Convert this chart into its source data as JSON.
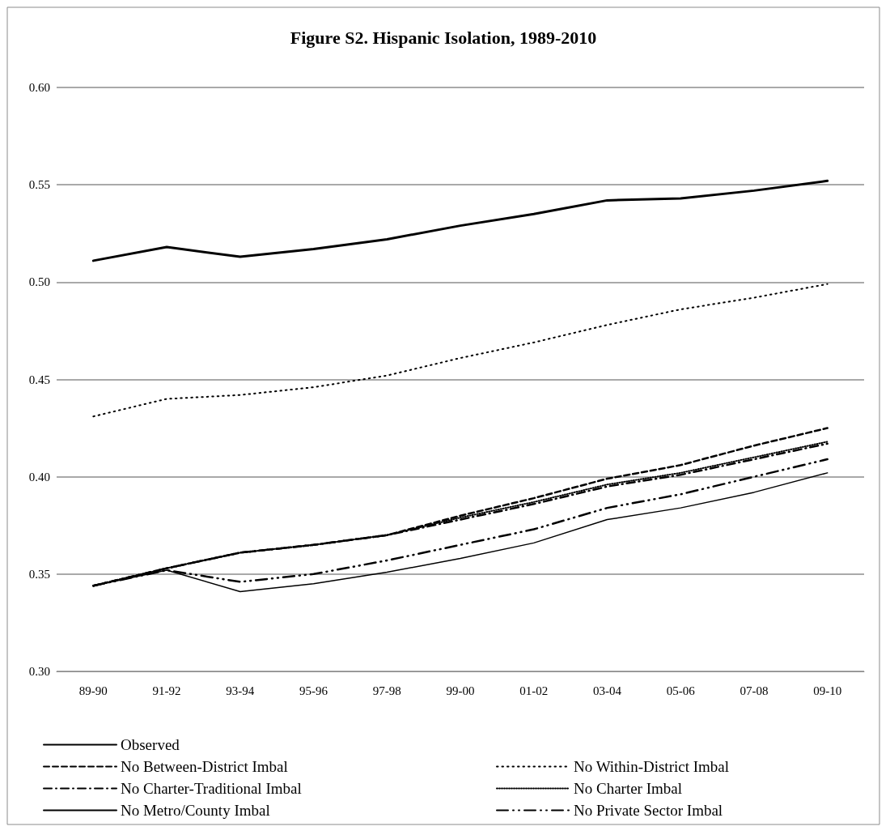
{
  "chart_data": {
    "type": "line",
    "title": "Figure S2. Hispanic Isolation, 1989-2010",
    "categories": [
      "89-90",
      "91-92",
      "93-94",
      "95-96",
      "97-98",
      "99-00",
      "01-02",
      "03-04",
      "05-06",
      "07-08",
      "09-10"
    ],
    "series": [
      {
        "name": "Observed",
        "color": "#000000",
        "line_style": "solid",
        "values": [
          0.511,
          0.518,
          0.513,
          0.517,
          0.522,
          0.529,
          0.535,
          0.542,
          0.543,
          0.547,
          0.552
        ]
      },
      {
        "name": "No Within-District Imbal",
        "color": "#000000",
        "line_style": "dotted",
        "values": [
          0.431,
          0.44,
          0.442,
          0.446,
          0.452,
          0.461,
          0.469,
          0.478,
          0.486,
          0.492,
          0.499
        ]
      },
      {
        "name": "No Between-District Imbal",
        "color": "#000000",
        "line_style": "dashed",
        "values": [
          0.344,
          0.353,
          0.361,
          0.365,
          0.37,
          0.38,
          0.389,
          0.399,
          0.406,
          0.416,
          0.425
        ]
      },
      {
        "name": "No Charter Imbal",
        "color": "#000000",
        "line_style": "dotted",
        "values": [
          0.344,
          0.353,
          0.361,
          0.365,
          0.37,
          0.379,
          0.387,
          0.396,
          0.402,
          0.41,
          0.418
        ]
      },
      {
        "name": "No Charter-Traditional Imbal",
        "color": "#000000",
        "line_style": "dashed",
        "values": [
          0.344,
          0.353,
          0.361,
          0.365,
          0.37,
          0.378,
          0.386,
          0.395,
          0.401,
          0.409,
          0.417
        ]
      },
      {
        "name": "No Private Sector Imbal",
        "color": "#000000",
        "line_style": "dashed",
        "values": [
          0.344,
          0.352,
          0.346,
          0.35,
          0.357,
          0.365,
          0.373,
          0.384,
          0.391,
          0.4,
          0.409
        ]
      },
      {
        "name": "No Metro/County Imbal",
        "color": "#000000",
        "line_style": "solid",
        "values": [
          0.344,
          0.352,
          0.341,
          0.345,
          0.351,
          0.358,
          0.366,
          0.378,
          0.384,
          0.392,
          0.402
        ]
      }
    ],
    "ylim": [
      0.3,
      0.6
    ],
    "yticks": [
      {
        "value": 0.3,
        "label": "0.30"
      },
      0.35,
      {
        "value": 0.4,
        "label": "0.40"
      },
      0.45,
      {
        "value": 0.5,
        "label": "0.50"
      },
      0.55,
      {
        "value": 0.6,
        "label": "0.60"
      }
    ],
    "grid": "y",
    "legend": "bottom",
    "marker": "none"
  }
}
